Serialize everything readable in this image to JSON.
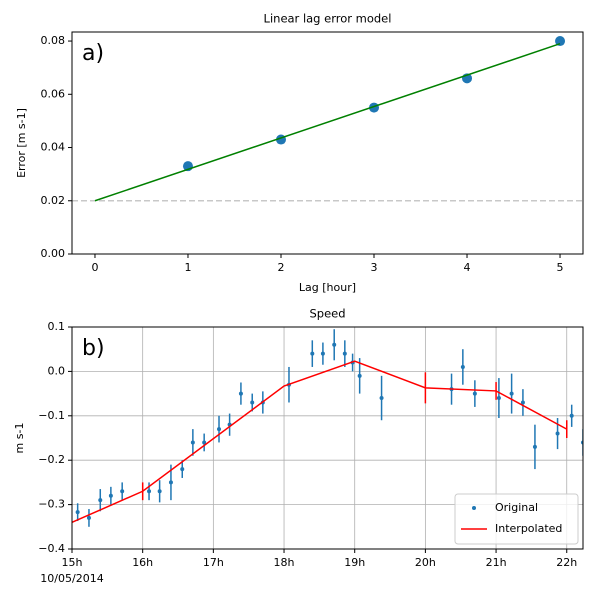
{
  "chart_data": [
    {
      "type": "scatter",
      "title": "Linear lag error model",
      "x_label": "Lag [hour]",
      "y_label": "Error [m s-1]",
      "panel_label": "a)",
      "xlim": [
        -0.247,
        5.247
      ],
      "ylim": [
        0,
        0.0834
      ],
      "xticks": [
        0,
        1,
        2,
        3,
        4,
        5
      ],
      "yticks": [
        {
          "value": 0,
          "label": "0.00"
        },
        0.02,
        0.04,
        0.06,
        0.08
      ],
      "grid": false,
      "reference_line": 0.02,
      "reference_color": "#c8c8c8",
      "series": [
        {
          "type": "scatter",
          "color": "#1f77b4",
          "marker_size": 5,
          "x": [
            1,
            2,
            3,
            4,
            5
          ],
          "values": [
            0.033,
            0.043,
            0.055,
            0.066,
            0.08
          ]
        },
        {
          "type": "line",
          "color": "#008000",
          "x": [
            0,
            5
          ],
          "values": [
            0.02,
            0.079
          ]
        }
      ]
    },
    {
      "type": "line",
      "title": "Speed",
      "y_label": "m s-1",
      "panel_label": "b)",
      "date_label": "10/05/2014",
      "xlim": [
        15,
        22.23
      ],
      "ylim": [
        -0.4,
        0.1
      ],
      "xticks": [
        {
          "value": 15,
          "label": "15h"
        },
        {
          "value": 16,
          "label": "16h"
        },
        {
          "value": 17,
          "label": "17h"
        },
        {
          "value": 18,
          "label": "18h"
        },
        {
          "value": 19,
          "label": "19h"
        },
        {
          "value": 20,
          "label": "20h"
        },
        {
          "value": 21,
          "label": "21h"
        },
        {
          "value": 22,
          "label": "22h"
        }
      ],
      "yticks": [
        {
          "value": -0.4,
          "label": "−0.4"
        },
        {
          "value": -0.3,
          "label": "−0.3"
        },
        {
          "value": -0.2,
          "label": "−0.2"
        },
        {
          "value": -0.1,
          "label": "−0.1"
        },
        {
          "value": 0,
          "label": "0.0"
        },
        0.1
      ],
      "grid": true,
      "legend": "lower right",
      "series": [
        {
          "type": "scatter",
          "name": "Original",
          "color": "#1f77b4",
          "marker_size": 2,
          "x": [
            15.08,
            15.24,
            15.4,
            15.55,
            15.71,
            16.09,
            16.24,
            16.4,
            16.56,
            16.71,
            16.87,
            17.08,
            17.23,
            17.39,
            17.55,
            17.7,
            18.07,
            18.4,
            18.55,
            18.71,
            18.86,
            18.97,
            19.07,
            19.38,
            20.37,
            20.53,
            20.7,
            21.04,
            21.22,
            21.38,
            21.55,
            21.87,
            22.07,
            22.23
          ],
          "values": [
            -0.317,
            -0.33,
            -0.29,
            -0.28,
            -0.27,
            -0.27,
            -0.27,
            -0.25,
            -0.22,
            -0.16,
            -0.16,
            -0.13,
            -0.12,
            -0.05,
            -0.07,
            -0.07,
            -0.03,
            0.04,
            0.04,
            0.06,
            0.04,
            0.02,
            -0.01,
            -0.06,
            -0.04,
            0.01,
            -0.05,
            -0.06,
            -0.05,
            -0.07,
            -0.17,
            -0.14,
            -0.1,
            -0.16
          ],
          "errors": [
            0.02,
            0.02,
            0.025,
            0.02,
            0.02,
            0.02,
            0.025,
            0.04,
            0.02,
            0.03,
            0.02,
            0.03,
            0.025,
            0.025,
            0.02,
            0.025,
            0.04,
            0.03,
            0.025,
            0.035,
            0.03,
            0.02,
            0.04,
            0.05,
            0.035,
            0.04,
            0.03,
            0.045,
            0.045,
            0.03,
            0.05,
            0.035,
            0.025,
            0.03
          ]
        },
        {
          "type": "line",
          "name": "Interpolated",
          "color": "#ff0000",
          "x": [
            15,
            16,
            18,
            19,
            20,
            21,
            22
          ],
          "values": [
            -0.34,
            -0.27,
            -0.033,
            0.023,
            -0.037,
            -0.044,
            -0.13
          ],
          "errors": [
            null,
            0.02,
            null,
            null,
            0.035,
            0.02,
            0.02
          ]
        }
      ]
    }
  ]
}
